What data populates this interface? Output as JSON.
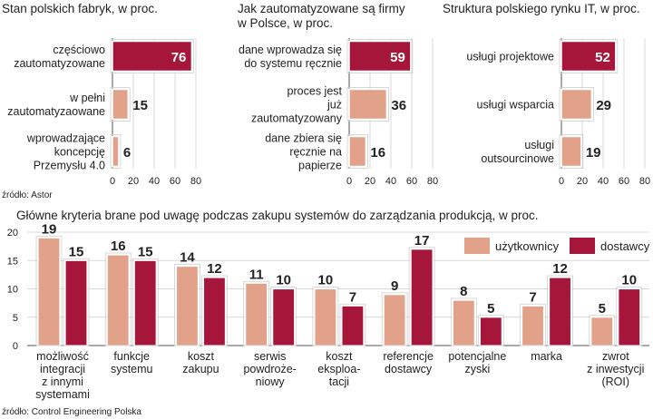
{
  "colors": {
    "light": "#e2a28a",
    "dark": "#a6153a",
    "grid": "#d9d9d9",
    "axis": "#555555",
    "text": "#222222"
  },
  "chart_data": [
    {
      "type": "bar",
      "orientation": "horizontal",
      "title": "Stan polskich fabryk, w proc.",
      "categories": [
        "częściowo zautomatyzowane",
        "w pełni zautomatyzaowane",
        "wprowadzające koncepcję Przemysłu 4.0"
      ],
      "category_lines": [
        [
          "częściowo",
          "zautomatyzowane"
        ],
        [
          "w pełni",
          "zautomatyzaowane"
        ],
        [
          "wprowadzające",
          "koncepcję",
          "Przemysłu 4.0"
        ]
      ],
      "values": [
        76,
        15,
        6
      ],
      "highlight_first": true,
      "xlim": [
        0,
        80
      ],
      "xticks": [
        0,
        20,
        40,
        60,
        80
      ],
      "source": "źródło: Astor"
    },
    {
      "type": "bar",
      "orientation": "horizontal",
      "title": "Jak zautomatyzowane są firmy w Polsce, w proc.",
      "title_lines": [
        "Jak zautomatyzowane są firmy",
        "w Polsce, w proc."
      ],
      "categories": [
        "dane wprowadza się do systemu ręcznie",
        "proces jest już zautomatyzowany",
        "dane zbiera się ręcznie na papierze"
      ],
      "category_lines": [
        [
          "dane wprowadza się",
          "do systemu ręcznie"
        ],
        [
          "proces jest",
          "już",
          "zautomatyzowany"
        ],
        [
          "dane zbiera się",
          "ręcznie na",
          "papierze"
        ]
      ],
      "values": [
        59,
        36,
        16
      ],
      "highlight_first": true,
      "xlim": [
        0,
        80
      ],
      "xticks": [
        0,
        20,
        40,
        60,
        80
      ]
    },
    {
      "type": "bar",
      "orientation": "horizontal",
      "title": "Struktura polskiego rynku IT, w proc.",
      "categories": [
        "usługi projektowe",
        "usługi wsparcia",
        "usługi outsourcinowe"
      ],
      "category_lines": [
        [
          "usługi projektowe"
        ],
        [
          "usługi wsparcia"
        ],
        [
          "usługi",
          "outsourcinowe"
        ]
      ],
      "values": [
        52,
        29,
        19
      ],
      "highlight_first": true,
      "xlim": [
        0,
        80
      ],
      "xticks": [
        0,
        20,
        40,
        60,
        80
      ]
    },
    {
      "type": "bar",
      "orientation": "vertical",
      "title": "Główne kryteria brane pod uwagę podczas zakupu systemów do zarządzania produkcją, w proc.",
      "categories": [
        "możliwość integracji z innymi systemami",
        "funkcje systemu",
        "koszt zakupu",
        "serwis powdrożeniowy",
        "koszt eksploatacji",
        "referencje dostawcy",
        "potencjalne zyski",
        "marka",
        "zwrot z inwestycji (ROI)"
      ],
      "category_lines": [
        [
          "możliwość",
          "integracji",
          "z innymi",
          "systemami"
        ],
        [
          "funkcje",
          "systemu"
        ],
        [
          "koszt",
          "zakupu"
        ],
        [
          "serwis",
          "powdroże-",
          "niowy"
        ],
        [
          "koszt",
          "eksploa-",
          "tacji"
        ],
        [
          "referencje",
          "dostawcy"
        ],
        [
          "potencjalne",
          "zyski"
        ],
        [
          "marka"
        ],
        [
          "zwrot",
          "z inwestycji",
          "(ROI)"
        ]
      ],
      "series": [
        {
          "name": "użytkownicy",
          "values": [
            19,
            16,
            14,
            11,
            10,
            9,
            8,
            7,
            5
          ]
        },
        {
          "name": "dostawcy",
          "values": [
            15,
            15,
            12,
            10,
            7,
            17,
            5,
            12,
            10
          ]
        }
      ],
      "ylim": [
        0,
        20
      ],
      "yticks": [
        0,
        5,
        10,
        15,
        20
      ],
      "legend": "top-right",
      "source": "źródło: Control Engineering Polska"
    }
  ]
}
